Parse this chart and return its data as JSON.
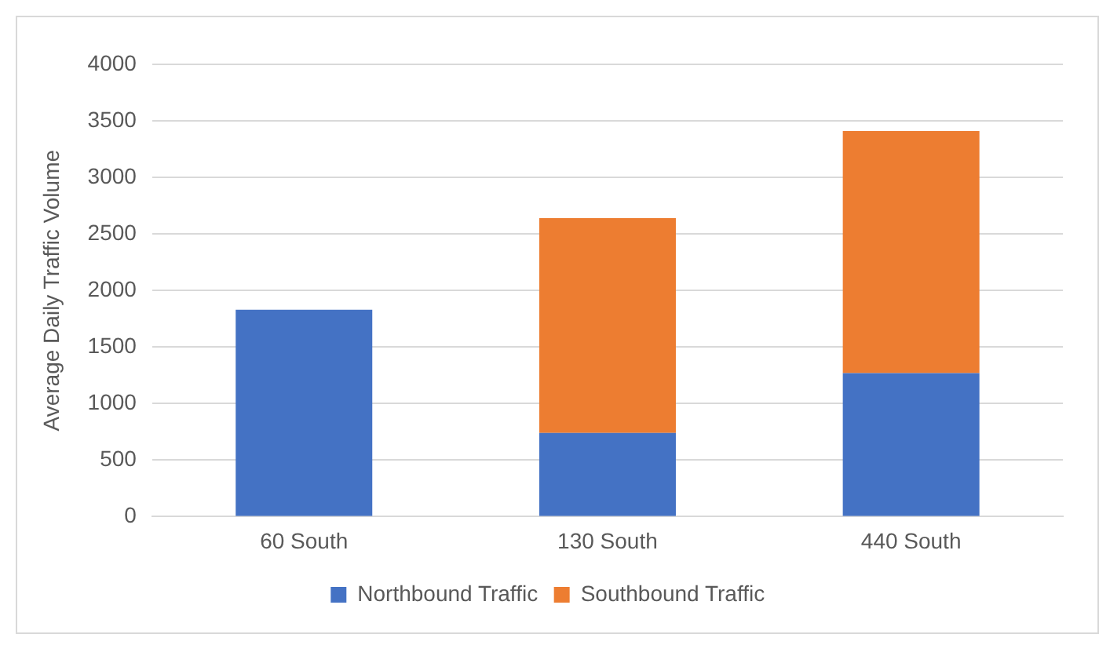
{
  "chart_data": {
    "type": "bar",
    "ylabel": "Average Daily Traffic Volume",
    "categories": [
      "60 South",
      "130 South",
      "440 South"
    ],
    "stacked": true,
    "series": [
      {
        "name": "Northbound Traffic",
        "color": "#4472c4",
        "values": [
          1830,
          740,
          1270
        ]
      },
      {
        "name": "Southbound Traffic",
        "color": "#ed7d31",
        "values": [
          null,
          1900,
          2140
        ]
      }
    ],
    "ylim": [
      0,
      4000
    ],
    "yticks": [
      0,
      500,
      1000,
      1500,
      2000,
      2500,
      3000,
      3500,
      4000
    ],
    "grid": "y",
    "legend": "bottom"
  }
}
